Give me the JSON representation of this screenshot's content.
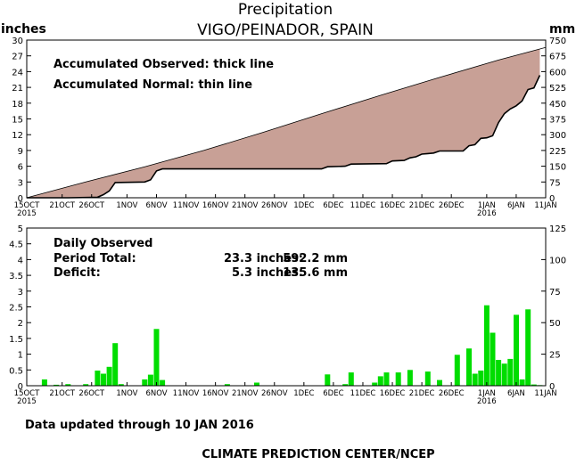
{
  "header": {
    "title": "Precipitation",
    "subtitle": "VIGO/PEINADOR, SPAIN",
    "unit_left": "inches",
    "unit_right": "mm"
  },
  "footer": {
    "updated": "Data updated through 10 JAN 2016",
    "credit": "CLIMATE PREDICTION CENTER/NCEP"
  },
  "colors": {
    "deficit_fill": "#c8a096",
    "daily_bar": "#00dd00",
    "axis": "#000000"
  },
  "chart_data": [
    {
      "type": "area",
      "name": "accumulated",
      "legend": [
        "Accumulated Observed: thick line",
        "Accumulated Normal: thin line"
      ],
      "x_labels": [
        "15OCT",
        "21OCT",
        "26OCT",
        "1NOV",
        "6NOV",
        "11NOV",
        "16NOV",
        "21NOV",
        "26NOV",
        "1DEC",
        "6DEC",
        "11DEC",
        "16DEC",
        "21DEC",
        "26DEC",
        "1JAN",
        "6JAN",
        "11JAN"
      ],
      "x_label_days": [
        0,
        6,
        11,
        17,
        22,
        27,
        32,
        37,
        42,
        47,
        52,
        57,
        62,
        67,
        72,
        78,
        83,
        88
      ],
      "year_labels": [
        {
          "day": 0,
          "label": "2015"
        },
        {
          "day": 78,
          "label": "2016"
        }
      ],
      "x_range": [
        0,
        88
      ],
      "y_ticks_left": [
        "0",
        "3",
        "6",
        "9",
        "12",
        "15",
        "18",
        "21",
        "24",
        "27",
        "30"
      ],
      "y_ticks_right": [
        "0",
        "75",
        "150",
        "225",
        "300",
        "375",
        "450",
        "525",
        "600",
        "675",
        "750"
      ],
      "ylim_inches": [
        0,
        30
      ],
      "normal_inches": [
        [
          0,
          0
        ],
        [
          10,
          3.0
        ],
        [
          20,
          5.9
        ],
        [
          30,
          9.0
        ],
        [
          40,
          12.4
        ],
        [
          50,
          16.0
        ],
        [
          60,
          19.5
        ],
        [
          70,
          22.9
        ],
        [
          80,
          26.2
        ],
        [
          88,
          28.6
        ]
      ],
      "observed_inches": [
        [
          0,
          0
        ],
        [
          7,
          0
        ],
        [
          12,
          0.1
        ],
        [
          13,
          0.6
        ],
        [
          14,
          1.3
        ],
        [
          15,
          2.9
        ],
        [
          20,
          3.0
        ],
        [
          21,
          3.4
        ],
        [
          22,
          5.1
        ],
        [
          23,
          5.5
        ],
        [
          42,
          5.5
        ],
        [
          50,
          5.5
        ],
        [
          51,
          5.9
        ],
        [
          54,
          6.0
        ],
        [
          55,
          6.4
        ],
        [
          61,
          6.5
        ],
        [
          62,
          7.0
        ],
        [
          64,
          7.1
        ],
        [
          65,
          7.6
        ],
        [
          66,
          7.8
        ],
        [
          67,
          8.3
        ],
        [
          68,
          8.4
        ],
        [
          69,
          8.5
        ],
        [
          70,
          8.9
        ],
        [
          74,
          8.9
        ],
        [
          75,
          9.9
        ],
        [
          76,
          10.1
        ],
        [
          77,
          11.3
        ],
        [
          78,
          11.4
        ],
        [
          79,
          11.8
        ],
        [
          80,
          14.3
        ],
        [
          81,
          16.0
        ],
        [
          82,
          16.9
        ],
        [
          83,
          17.5
        ],
        [
          84,
          18.4
        ],
        [
          85,
          20.6
        ],
        [
          86,
          20.9
        ],
        [
          87,
          23.3
        ]
      ]
    },
    {
      "type": "bar",
      "name": "daily",
      "legend_title": "Daily Observed",
      "stats": [
        {
          "label": "Period Total:",
          "inches": "23.3 inches:",
          "mm": "592.2 mm"
        },
        {
          "label": "Deficit:",
          "inches": "5.3 inches:",
          "mm": "135.6 mm"
        }
      ],
      "y_ticks_left": [
        "0",
        "0.5",
        "1",
        "1.5",
        "2",
        "2.5",
        "3",
        "3.5",
        "4",
        "4.5",
        "5"
      ],
      "y_ticks_right": [
        "0",
        "25",
        "50",
        "75",
        "100",
        "125"
      ],
      "ylim_inches": [
        0,
        5
      ],
      "days": [
        3,
        5,
        7,
        10,
        12,
        13,
        14,
        15,
        16,
        20,
        21,
        22,
        23,
        34,
        39,
        51,
        54,
        55,
        59,
        60,
        61,
        63,
        65,
        68,
        70,
        73,
        75,
        76,
        77,
        78,
        79,
        80,
        81,
        82,
        83,
        84,
        85,
        86,
        87
      ],
      "values_inches": [
        0.2,
        0.03,
        0.05,
        0.05,
        0.48,
        0.38,
        0.6,
        1.35,
        0.05,
        0.2,
        0.35,
        1.8,
        0.18,
        0.05,
        0.1,
        0.36,
        0.05,
        0.42,
        0.1,
        0.3,
        0.42,
        0.42,
        0.5,
        0.45,
        0.18,
        0.98,
        1.18,
        0.38,
        0.48,
        2.55,
        1.68,
        0.82,
        0.7,
        0.85,
        2.25,
        0.2,
        2.42,
        0.04,
        0.02
      ]
    }
  ]
}
